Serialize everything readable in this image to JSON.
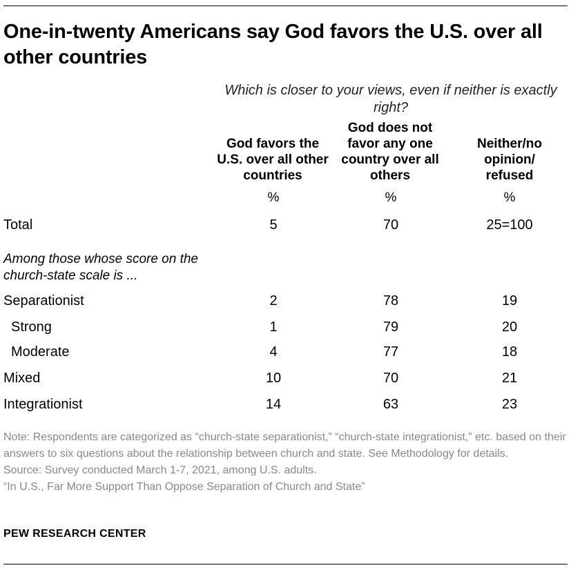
{
  "title": "One-in-twenty Americans say God favors the U.S. over all other countries",
  "chart_data": {
    "type": "table",
    "question": "Which is closer to your views, even if neither is exactly right?",
    "columns": [
      {
        "label": "God favors the U.S. over all other countries",
        "unit": "%"
      },
      {
        "label": "God does not favor any one country over all others",
        "unit": "%"
      },
      {
        "label": "Neither/no opinion/ refused",
        "unit": "%"
      }
    ],
    "subheading": "Among those whose score on the church-state scale is ...",
    "rows": [
      {
        "label": "Total",
        "values": [
          "5",
          "70",
          "25=100"
        ],
        "indent": false
      },
      {
        "label": "Separationist",
        "values": [
          "2",
          "78",
          "19"
        ],
        "indent": false
      },
      {
        "label": "Strong",
        "values": [
          "1",
          "79",
          "20"
        ],
        "indent": true
      },
      {
        "label": "Moderate",
        "values": [
          "4",
          "77",
          "18"
        ],
        "indent": true
      },
      {
        "label": "Mixed",
        "values": [
          "10",
          "70",
          "21"
        ],
        "indent": false
      },
      {
        "label": "Integrationist",
        "values": [
          "14",
          "63",
          "23"
        ],
        "indent": false
      }
    ]
  },
  "notes": {
    "note": "Note: Respondents are categorized as “church-state separationist,” “church-state integrationist,” etc. based on their answers to six questions about the relationship between church and state. See Methodology for details.",
    "source": "Source: Survey conducted March 1-7, 2021, among U.S. adults.",
    "report": "“In U.S., Far More Support Than Oppose Separation of Church and State”"
  },
  "brand": "PEW RESEARCH CENTER"
}
